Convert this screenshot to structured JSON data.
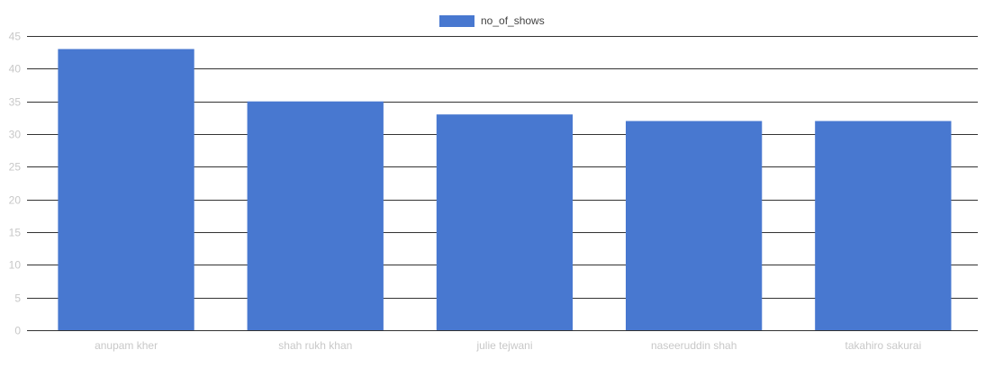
{
  "chart_data": {
    "type": "bar",
    "title": "",
    "xlabel": "",
    "ylabel": "",
    "categories": [
      "anupam kher",
      "shah rukh khan",
      "julie tejwani",
      "naseeruddin shah",
      "takahiro sakurai"
    ],
    "series": [
      {
        "name": "no_of_shows",
        "values": [
          43,
          35,
          33,
          32,
          32
        ],
        "color": "#4878d0"
      }
    ],
    "ylim": [
      0,
      45
    ],
    "yticks": [
      0,
      5,
      10,
      15,
      20,
      25,
      30,
      35,
      40,
      45
    ],
    "grid": true,
    "legend_position": "top-center"
  },
  "colors": {
    "bar": "#4878d0",
    "grid": "#333333",
    "tick_text": "#c8c8c8",
    "legend_text": "#444444"
  }
}
